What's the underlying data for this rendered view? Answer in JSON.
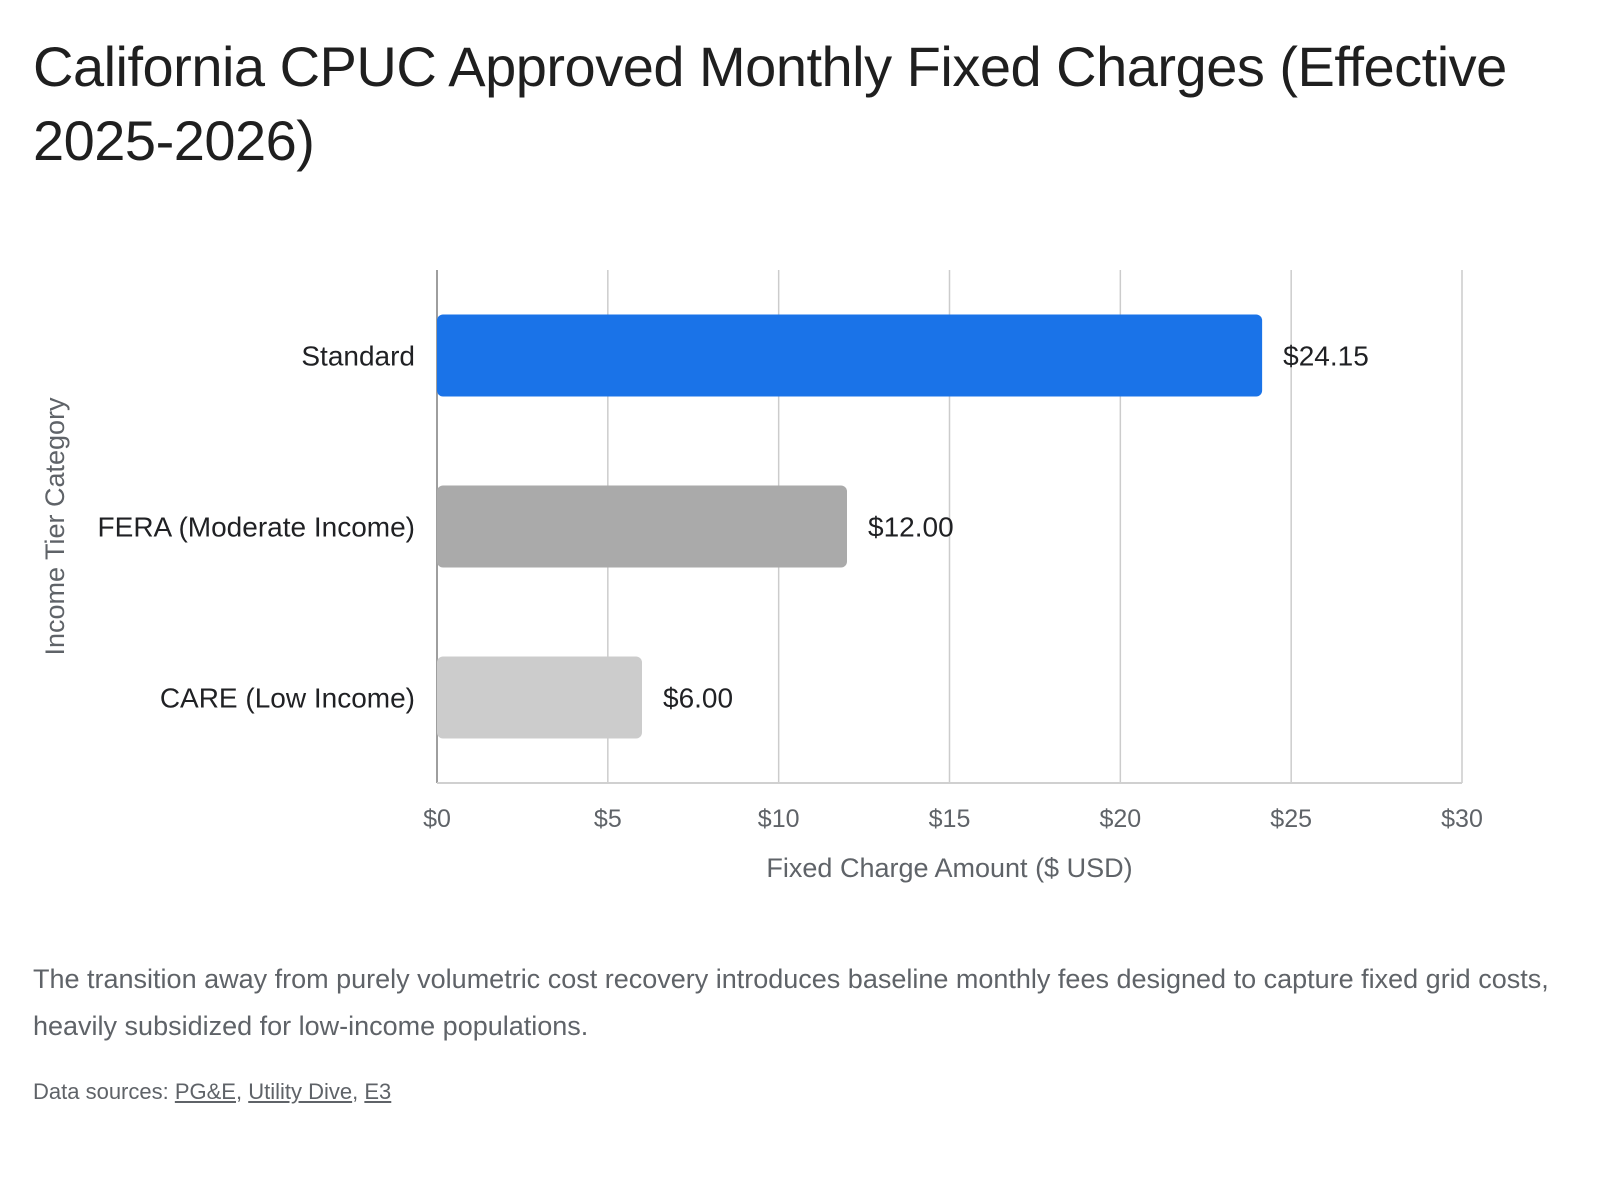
{
  "title": "California CPUC Approved Monthly Fixed Charges (Effective 2025-2026)",
  "caption": "The transition away from purely volumetric cost recovery introduces baseline monthly fees designed to capture fixed grid costs, heavily subsidized for low-income populations.",
  "sources": {
    "prefix": "Data sources: ",
    "links": [
      "PG&E",
      "Utility Dive",
      "E3"
    ],
    "separator": ", "
  },
  "chart_data": {
    "type": "bar",
    "orientation": "horizontal",
    "categories": [
      "Standard",
      "FERA (Moderate Income)",
      "CARE (Low Income)"
    ],
    "values": [
      24.15,
      12.0,
      6.0
    ],
    "value_labels": [
      "$24.15",
      "$12.00",
      "$6.00"
    ],
    "bar_colors": [
      "#1a73e8",
      "#aaaaaa",
      "#cccccc"
    ],
    "xlabel": "Fixed Charge Amount ($ USD)",
    "ylabel": "Income Tier Category",
    "xlim": [
      0,
      30
    ],
    "xticks": [
      0,
      5,
      10,
      15,
      20,
      25,
      30
    ],
    "xtick_labels": [
      "$0",
      "$5",
      "$10",
      "$15",
      "$20",
      "$25",
      "$30"
    ],
    "grid": true,
    "legend": "none"
  }
}
